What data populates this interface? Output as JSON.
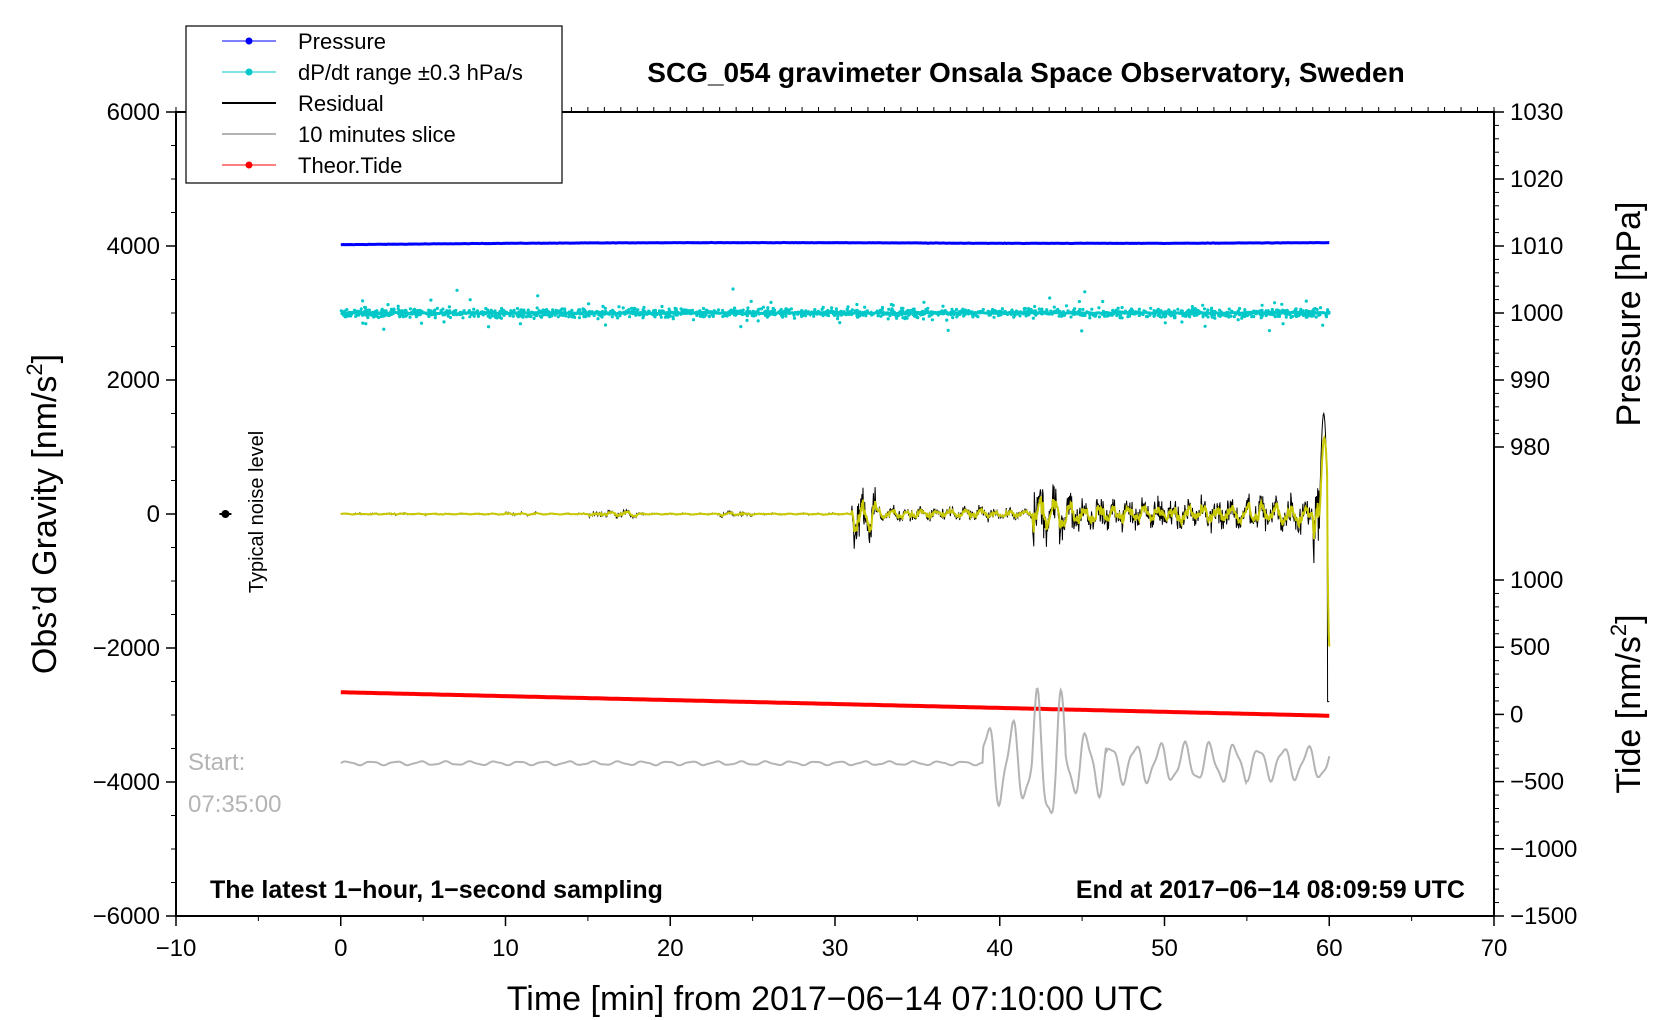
{
  "chart_data": {
    "type": "line",
    "title": "SCG_054 gravimeter Onsala Space Observatory, Sweden",
    "xlabel": "Time [min] from 2017−06−14 07:10:00 UTC",
    "ylabel_left": "Obs’d Gravity [nm/s",
    "ylabel_left_sup": "2",
    "ylabel_left_end": "]",
    "ylabel_right_pressure": "Pressure [hPa]",
    "ylabel_right_tide": "Tide [nm/s",
    "ylabel_right_tide_sup": "2",
    "ylabel_right_tide_end": "]",
    "xlim": [
      -10,
      70
    ],
    "ylim_left": [
      -6000,
      6000
    ],
    "x_ticks": [
      "−10",
      "0",
      "10",
      "20",
      "30",
      "40",
      "50",
      "60",
      "70"
    ],
    "x_tick_values": [
      -10,
      0,
      10,
      20,
      30,
      40,
      50,
      60,
      70
    ],
    "y_left_ticks": [
      "6000",
      "4000",
      "2000",
      "0",
      "−2000",
      "−4000",
      "−6000"
    ],
    "y_left_tick_values": [
      6000,
      4000,
      2000,
      0,
      -2000,
      -4000,
      -6000
    ],
    "y_right_pressure_ticks": [
      "1030",
      "1020",
      "1010",
      "1000",
      "990",
      "980"
    ],
    "y_right_pressure_values": [
      1030,
      1020,
      1010,
      1000,
      990,
      980
    ],
    "y_right_tide_ticks": [
      "1000",
      "500",
      "0",
      "−500",
      "−1000",
      "−1500"
    ],
    "y_right_tide_values": [
      1000,
      500,
      0,
      -500,
      -1000,
      -1500
    ],
    "legend": {
      "placement": "top-left",
      "entries": [
        {
          "label": "Pressure",
          "color": "#0000ff",
          "marker": true
        },
        {
          "label": "dP/dt range ±0.3 hPa/s",
          "color": "#00c8c8",
          "marker": true
        },
        {
          "label": "Residual",
          "color": "#000000",
          "marker": false
        },
        {
          "label": "10 minutes slice",
          "color": "#b4b4b4",
          "marker": false
        },
        {
          "label": "Theor.Tide",
          "color": "#ff0000",
          "marker": true
        }
      ]
    },
    "series": [
      {
        "name": "Pressure",
        "color": "#0000ff",
        "pressure_hPa": [
          1010.2,
          1010.4,
          1010.5,
          1010.5,
          1010.4,
          1010.4,
          1010.5
        ],
        "x": [
          0,
          10,
          20,
          30,
          40,
          50,
          60
        ]
      },
      {
        "name": "dP/dt range ±0.3 hPa/s",
        "color": "#00c8c8",
        "center_nms2": 3000,
        "spread_nms2": 120
      },
      {
        "name": "Residual",
        "color": "#000000"
      },
      {
        "name": "10 minutes slice",
        "color": "#b4b4b4",
        "baseline_nms2": -3720
      },
      {
        "name": "Theor.Tide",
        "color": "#ff0000",
        "x": [
          0,
          60
        ],
        "tide_nms2": [
          165,
          -10
        ]
      }
    ],
    "noise_level": {
      "x": -7,
      "y": 0
    },
    "annotations": {
      "noise_label": "Typical noise level",
      "start_label_1": "Start:",
      "start_label_2": "07:35:00",
      "bottom_left": "The latest 1−hour, 1−second sampling",
      "bottom_right": "End at 2017−06−14 08:09:59 UTC"
    }
  },
  "colors": {
    "pressure": "#0000ff",
    "dpdt": "#00c8c8",
    "residual": "#000000",
    "filtered": "#c8c800",
    "slice": "#b4b4b4",
    "tide": "#ff0000"
  }
}
